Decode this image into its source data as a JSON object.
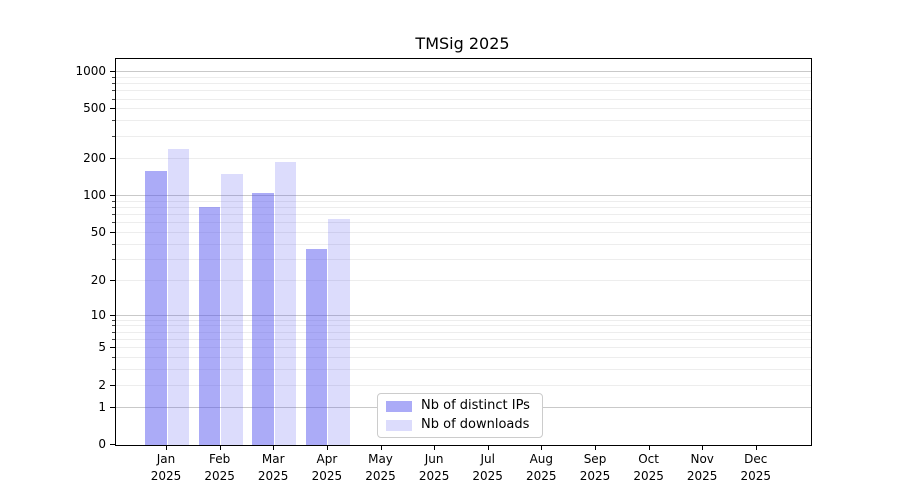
{
  "chart_data": {
    "type": "bar",
    "title": "TMSig 2025",
    "categories": [
      "Jan",
      "Feb",
      "Mar",
      "Apr",
      "May",
      "Jun",
      "Jul",
      "Aug",
      "Sep",
      "Oct",
      "Nov",
      "Dec"
    ],
    "x_tick_year": "2025",
    "series": [
      {
        "name": "Nb of distinct IPs",
        "color_hex": "#a9a9f6",
        "fill": "rgba(80,80,238,0.48)",
        "values": [
          160,
          82,
          105,
          37,
          null,
          null,
          null,
          null,
          null,
          null,
          null,
          null
        ]
      },
      {
        "name": "Nb of downloads",
        "color_hex": "#dcdcfa",
        "fill": "rgba(80,80,238,0.20)",
        "values": [
          240,
          150,
          190,
          65,
          null,
          null,
          null,
          null,
          null,
          null,
          null,
          null
        ]
      }
    ],
    "y_scale": "log10(1+v)",
    "ylim": [
      0,
      1270
    ],
    "y_ticks": [
      0,
      1,
      2,
      5,
      10,
      20,
      50,
      100,
      200,
      500,
      1000
    ],
    "y_major_grid_values": [
      1,
      10,
      100,
      1000
    ],
    "y_minor_grid_values": [
      2,
      3,
      4,
      5,
      6,
      7,
      8,
      9,
      20,
      30,
      40,
      50,
      60,
      70,
      80,
      90,
      200,
      300,
      400,
      500,
      600,
      700,
      800,
      900
    ],
    "grid": true,
    "legend_position": "lower center-left"
  },
  "colors": {
    "grid_major": "#c9c9c9",
    "grid_minor": "#ededed",
    "spine": "#000000",
    "legend_border": "#cccccc",
    "background": "#ffffff"
  }
}
